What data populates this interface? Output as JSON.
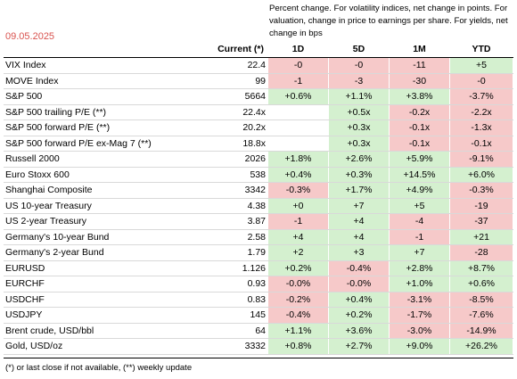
{
  "date": "09.05.2025",
  "note": "Percent change. For volatility indices, net change in points. For valuation, change in price to earnings per share. For yields, net change in bps",
  "headers": {
    "current": "Current (*)",
    "d1": "1D",
    "d5": "5D",
    "m1": "1M",
    "ytd": "YTD"
  },
  "colors": {
    "positive": "#d4f0cf",
    "negative": "#f6c9c9",
    "date": "#d9534f"
  },
  "rows": [
    {
      "name": "VIX Index",
      "current": "22.4",
      "d1": "-0",
      "d5": "-0",
      "m1": "-11",
      "ytd": "+5",
      "s": [
        "neg",
        "neg",
        "neg",
        "pos"
      ]
    },
    {
      "name": "MOVE Index",
      "current": "99",
      "d1": "-1",
      "d5": "-3",
      "m1": "-30",
      "ytd": "-0",
      "s": [
        "neg",
        "neg",
        "neg",
        "neg"
      ]
    },
    {
      "name": "S&P 500",
      "current": "5664",
      "d1": "+0.6%",
      "d5": "+1.1%",
      "m1": "+3.8%",
      "ytd": "-3.7%",
      "s": [
        "pos",
        "pos",
        "pos",
        "neg"
      ]
    },
    {
      "name": "S&P 500 trailing P/E (**)",
      "current": "22.4x",
      "d1": "",
      "d5": "+0.5x",
      "m1": "-0.2x",
      "ytd": "-2.2x",
      "s": [
        "",
        "pos",
        "neg",
        "neg"
      ]
    },
    {
      "name": "S&P 500 forward P/E (**)",
      "current": "20.2x",
      "d1": "",
      "d5": "+0.3x",
      "m1": "-0.1x",
      "ytd": "-1.3x",
      "s": [
        "",
        "pos",
        "neg",
        "neg"
      ]
    },
    {
      "name": "S&P 500 forward P/E ex-Mag 7 (**)",
      "current": "18.8x",
      "d1": "",
      "d5": "+0.3x",
      "m1": "-0.1x",
      "ytd": "-0.1x",
      "s": [
        "",
        "pos",
        "neg",
        "neg"
      ]
    },
    {
      "name": "Russell 2000",
      "current": "2026",
      "d1": "+1.8%",
      "d5": "+2.6%",
      "m1": "+5.9%",
      "ytd": "-9.1%",
      "s": [
        "pos",
        "pos",
        "pos",
        "neg"
      ]
    },
    {
      "name": "Euro Stoxx 600",
      "current": "538",
      "d1": "+0.4%",
      "d5": "+0.3%",
      "m1": "+14.5%",
      "ytd": "+6.0%",
      "s": [
        "pos",
        "pos",
        "pos",
        "pos"
      ]
    },
    {
      "name": "Shanghai Composite",
      "current": "3342",
      "d1": "-0.3%",
      "d5": "+1.7%",
      "m1": "+4.9%",
      "ytd": "-0.3%",
      "s": [
        "neg",
        "pos",
        "pos",
        "neg"
      ]
    },
    {
      "name": "US 10-year Treasury",
      "current": "4.38",
      "d1": "+0",
      "d5": "+7",
      "m1": "+5",
      "ytd": "-19",
      "s": [
        "pos",
        "pos",
        "pos",
        "neg"
      ]
    },
    {
      "name": "US 2-year Treasury",
      "current": "3.87",
      "d1": "-1",
      "d5": "+4",
      "m1": "-4",
      "ytd": "-37",
      "s": [
        "neg",
        "pos",
        "neg",
        "neg"
      ]
    },
    {
      "name": "Germany's 10-year Bund",
      "current": "2.58",
      "d1": "+4",
      "d5": "+4",
      "m1": "-1",
      "ytd": "+21",
      "s": [
        "pos",
        "pos",
        "neg",
        "pos"
      ]
    },
    {
      "name": "Germany's 2-year Bund",
      "current": "1.79",
      "d1": "+2",
      "d5": "+3",
      "m1": "+7",
      "ytd": "-28",
      "s": [
        "pos",
        "pos",
        "pos",
        "neg"
      ]
    },
    {
      "name": "EURUSD",
      "current": "1.126",
      "d1": "+0.2%",
      "d5": "-0.4%",
      "m1": "+2.8%",
      "ytd": "+8.7%",
      "s": [
        "pos",
        "neg",
        "pos",
        "pos"
      ]
    },
    {
      "name": "EURCHF",
      "current": "0.93",
      "d1": "-0.0%",
      "d5": "-0.0%",
      "m1": "+1.0%",
      "ytd": "+0.6%",
      "s": [
        "neg",
        "neg",
        "pos",
        "pos"
      ]
    },
    {
      "name": "USDCHF",
      "current": "0.83",
      "d1": "-0.2%",
      "d5": "+0.4%",
      "m1": "-3.1%",
      "ytd": "-8.5%",
      "s": [
        "neg",
        "pos",
        "neg",
        "neg"
      ]
    },
    {
      "name": "USDJPY",
      "current": "145",
      "d1": "-0.4%",
      "d5": "+0.2%",
      "m1": "-1.7%",
      "ytd": "-7.6%",
      "s": [
        "neg",
        "pos",
        "neg",
        "neg"
      ]
    },
    {
      "name": "Brent crude, USD/bbl",
      "current": "64",
      "d1": "+1.1%",
      "d5": "+3.6%",
      "m1": "-3.0%",
      "ytd": "-14.9%",
      "s": [
        "pos",
        "pos",
        "neg",
        "neg"
      ]
    },
    {
      "name": "Gold,  USD/oz",
      "current": "3332",
      "d1": "+0.8%",
      "d5": "+2.7%",
      "m1": "+9.0%",
      "ytd": "+26.2%",
      "s": [
        "pos",
        "pos",
        "pos",
        "pos"
      ]
    }
  ],
  "footnote": "(*) or last close if not available, (**) weekly update"
}
